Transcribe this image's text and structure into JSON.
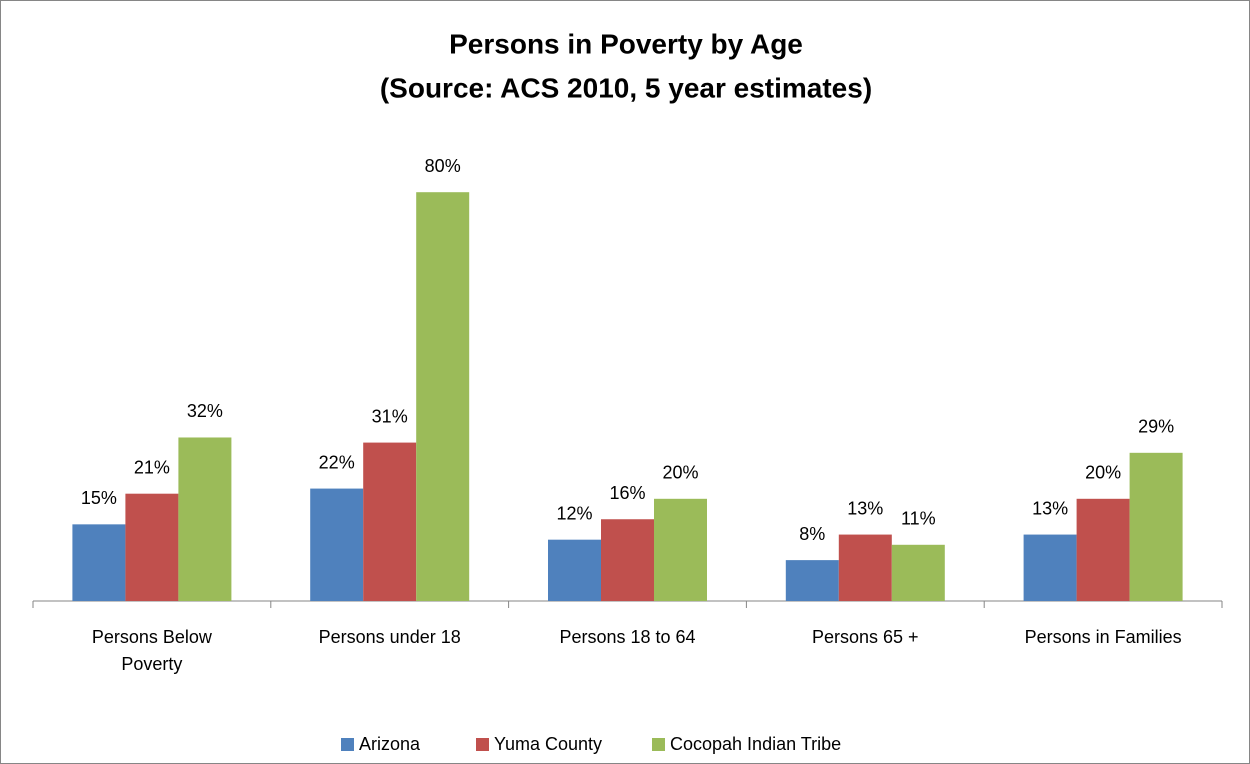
{
  "chart_data": {
    "type": "bar",
    "title": "Persons in Poverty by Age",
    "subtitle": "(Source: ACS 2010, 5 year estimates)",
    "categories": [
      "Persons Below Poverty",
      "Persons under 18",
      "Persons 18 to 64",
      "Persons 65 +",
      "Persons in Families"
    ],
    "series": [
      {
        "name": "Arizona",
        "color": "#4f81bd",
        "values": [
          15,
          22,
          12,
          8,
          13
        ],
        "value_labels": [
          "15%",
          "22%",
          "12%",
          "8%",
          "13%"
        ]
      },
      {
        "name": "Yuma County",
        "color": "#c0504d",
        "values": [
          21,
          31,
          16,
          13,
          20
        ],
        "value_labels": [
          "21%",
          "31%",
          "16%",
          "13%",
          "20%"
        ]
      },
      {
        "name": "Cocopah Indian Tribe",
        "color": "#9bbb59",
        "values": [
          32,
          80,
          20,
          11,
          29
        ],
        "value_labels": [
          "32%",
          "80%",
          "20%",
          "11%",
          "29%"
        ]
      }
    ],
    "legend": "bottom"
  }
}
